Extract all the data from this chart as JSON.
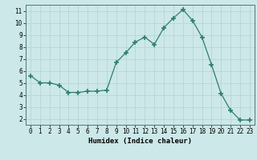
{
  "x": [
    0,
    1,
    2,
    3,
    4,
    5,
    6,
    7,
    8,
    9,
    10,
    11,
    12,
    13,
    14,
    15,
    16,
    17,
    18,
    19,
    20,
    21,
    22,
    23
  ],
  "y": [
    5.6,
    5.0,
    5.0,
    4.8,
    4.2,
    4.2,
    4.3,
    4.3,
    4.4,
    6.7,
    7.5,
    8.4,
    8.8,
    8.2,
    9.6,
    10.4,
    11.1,
    10.2,
    8.8,
    6.5,
    4.1,
    2.7,
    1.9,
    1.9
  ],
  "line_color": "#2e7d6e",
  "marker": "+",
  "marker_size": 4,
  "background_color": "#cce8e8",
  "grid_color": "#b8d4d4",
  "xlabel": "Humidex (Indice chaleur)",
  "xlim": [
    -0.5,
    23.5
  ],
  "ylim": [
    1.5,
    11.5
  ],
  "yticks": [
    2,
    3,
    4,
    5,
    6,
    7,
    8,
    9,
    10,
    11
  ],
  "xticks": [
    0,
    1,
    2,
    3,
    4,
    5,
    6,
    7,
    8,
    9,
    10,
    11,
    12,
    13,
    14,
    15,
    16,
    17,
    18,
    19,
    20,
    21,
    22,
    23
  ],
  "tick_fontsize": 5.5,
  "xlabel_fontsize": 6.5
}
